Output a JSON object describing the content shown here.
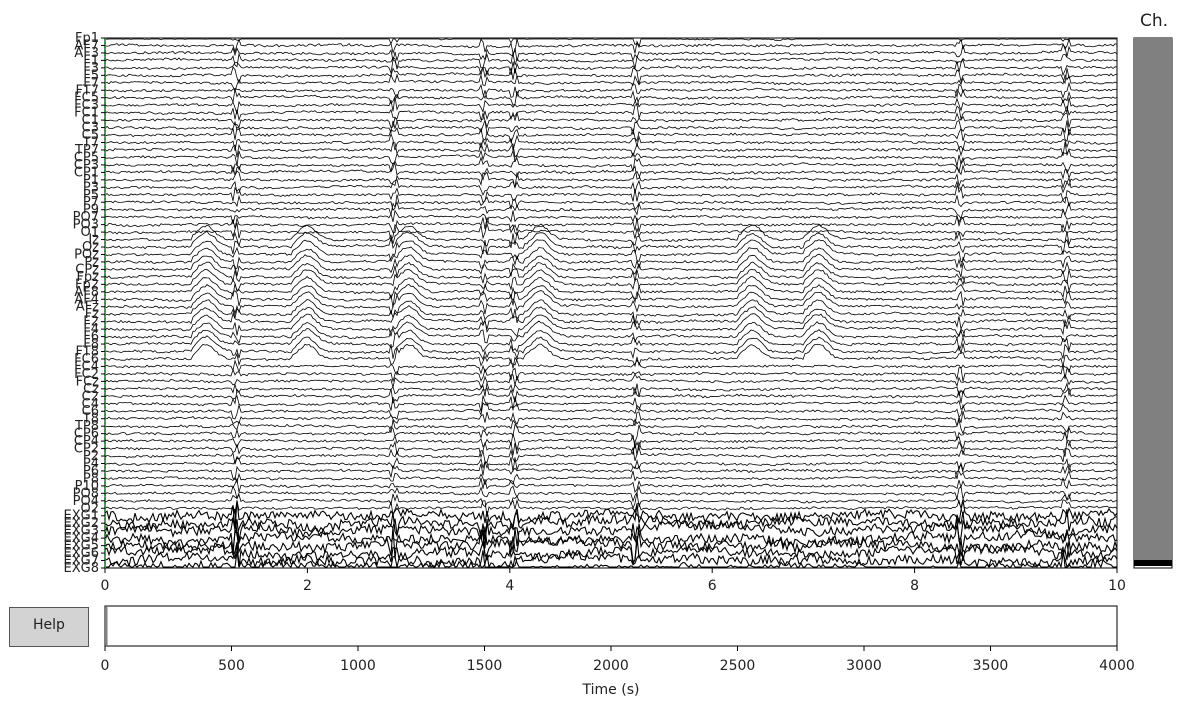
{
  "title": "Ch.",
  "help_button": {
    "label": "Help"
  },
  "colors": {
    "trace": "#000000",
    "channel_scrollbar": "#808080",
    "channel_scrollbar_marker": "#000000",
    "annotation_marker": "#2ca02c",
    "help_button_bg": "#d3d3d3"
  },
  "chart_data": [
    {
      "type": "line",
      "title": "",
      "xlabel": "",
      "ylabel": "",
      "xlim": [
        0,
        10
      ],
      "x_ticks": [
        0,
        2,
        4,
        6,
        8,
        10
      ],
      "x_tick_labels": [
        "0",
        "2",
        "4",
        "6",
        "8",
        "10"
      ],
      "grid": false,
      "channels": [
        "Fp1",
        "AF7",
        "AF3",
        "F1",
        "F3",
        "F5",
        "F7",
        "FT7",
        "FC5",
        "FC3",
        "FC1",
        "C1",
        "C3",
        "C5",
        "T7",
        "TP7",
        "CP5",
        "CP3",
        "CP1",
        "P1",
        "P3",
        "P5",
        "P7",
        "P9",
        "PO7",
        "PO3",
        "O1",
        "Iz",
        "Oz",
        "POz",
        "Pz",
        "CPz",
        "Fpz",
        "Fp2",
        "AF8",
        "AF4",
        "AFz",
        "Fz",
        "F2",
        "F4",
        "F6",
        "F8",
        "FT8",
        "FC6",
        "FC4",
        "FC2",
        "FCz",
        "Cz",
        "C2",
        "C4",
        "C6",
        "T8",
        "TP8",
        "CP6",
        "CP4",
        "CP2",
        "P2",
        "P4",
        "P6",
        "P8",
        "P10",
        "PO8",
        "PO4",
        "O2",
        "EXG1",
        "EXG2",
        "EXG3",
        "EXG4",
        "EXG5",
        "EXG6",
        "EXG7",
        "EXG8"
      ]
    },
    {
      "type": "line",
      "title": "",
      "xlabel": "Time (s)",
      "ylabel": "",
      "xlim": [
        0,
        4000
      ],
      "x_ticks": [
        0,
        500,
        1000,
        1500,
        2000,
        2500,
        3000,
        3500,
        4000
      ],
      "x_tick_labels": [
        "0",
        "500",
        "1000",
        "1500",
        "2000",
        "2500",
        "3000",
        "3500",
        "4000"
      ],
      "view_window": [
        0,
        10
      ]
    }
  ]
}
